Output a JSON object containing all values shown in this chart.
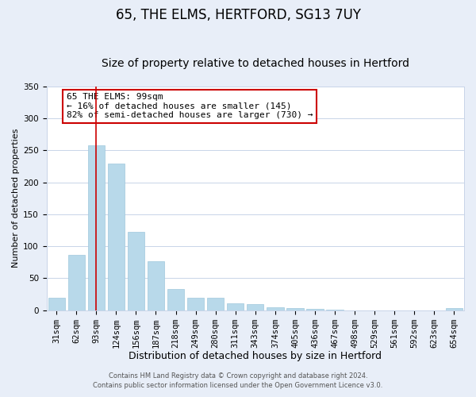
{
  "title": "65, THE ELMS, HERTFORD, SG13 7UY",
  "subtitle": "Size of property relative to detached houses in Hertford",
  "xlabel": "Distribution of detached houses by size in Hertford",
  "ylabel": "Number of detached properties",
  "bar_labels": [
    "31sqm",
    "62sqm",
    "93sqm",
    "124sqm",
    "156sqm",
    "187sqm",
    "218sqm",
    "249sqm",
    "280sqm",
    "311sqm",
    "343sqm",
    "374sqm",
    "405sqm",
    "436sqm",
    "467sqm",
    "498sqm",
    "529sqm",
    "561sqm",
    "592sqm",
    "623sqm",
    "654sqm"
  ],
  "bar_values": [
    20,
    87,
    258,
    230,
    122,
    77,
    33,
    20,
    20,
    11,
    9,
    4,
    3,
    2,
    1,
    0,
    0,
    0,
    0,
    0,
    3
  ],
  "bar_color": "#b8d9ea",
  "bar_edge_color": "#9fc8dc",
  "vline_x": 2,
  "vline_color": "#cc0000",
  "ylim": [
    0,
    350
  ],
  "yticks": [
    0,
    50,
    100,
    150,
    200,
    250,
    300,
    350
  ],
  "annotation_text": "65 THE ELMS: 99sqm\n← 16% of detached houses are smaller (145)\n82% of semi-detached houses are larger (730) →",
  "annotation_box_color": "#ffffff",
  "annotation_box_edge": "#cc0000",
  "footer_line1": "Contains HM Land Registry data © Crown copyright and database right 2024.",
  "footer_line2": "Contains public sector information licensed under the Open Government Licence v3.0.",
  "background_color": "#e8eef8",
  "plot_background_color": "#ffffff",
  "grid_color": "#c8d4e8",
  "title_fontsize": 12,
  "subtitle_fontsize": 10,
  "xlabel_fontsize": 9,
  "ylabel_fontsize": 8,
  "tick_fontsize": 7.5,
  "annotation_fontsize": 8,
  "footer_fontsize": 6
}
